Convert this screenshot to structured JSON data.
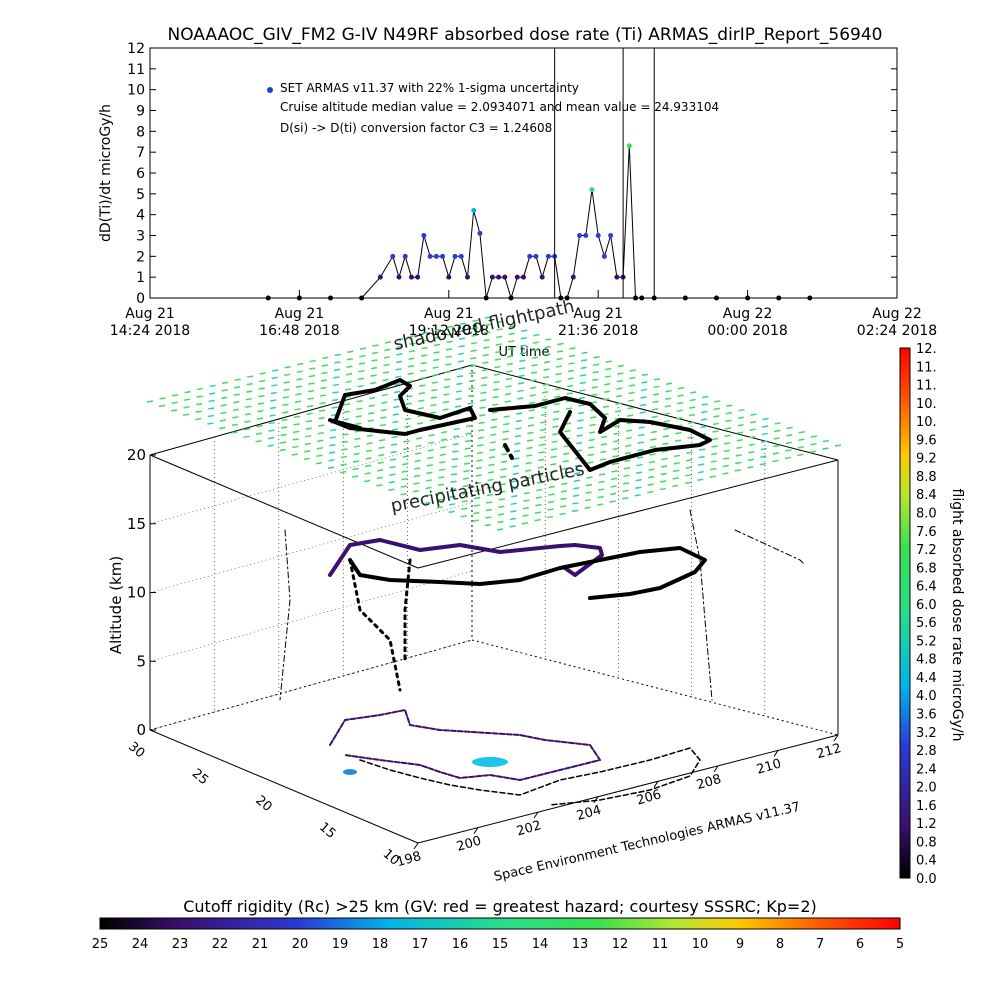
{
  "title": "NOAAAOC_GIV_FM2 G-IV    N49RF   absorbed dose rate (Ti) ARMAS_dirIP_Report_56940",
  "top_chart": {
    "ylabel": "dD(Ti)/dt microGy/h",
    "xlabel": "UT time",
    "legend": [
      "SET ARMAS v11.37 with 22% 1-sigma uncertainty",
      "Cruise altitude median value = 2.0934071 and  mean value = 24.933104",
      "D(si) -> D(ti) conversion factor C3 = 1.24608"
    ],
    "yticks": [
      "0",
      "1",
      "2",
      "3",
      "4",
      "5",
      "6",
      "7",
      "8",
      "9",
      "10",
      "11",
      "12"
    ],
    "xticks": [
      {
        "day": "Aug 21",
        "time": "14:24 2018"
      },
      {
        "day": "Aug 21",
        "time": "16:48 2018"
      },
      {
        "day": "Aug 21",
        "time": "19:12 2018"
      },
      {
        "day": "Aug 21",
        "time": "21:36 2018"
      },
      {
        "day": "Aug 22",
        "time": "00:00 2018"
      },
      {
        "day": "Aug 22",
        "time": "02:24 2018"
      }
    ]
  },
  "chart_data": {
    "type": "line",
    "title": "NOAAAOC_GIV_FM2 G-IV    N49RF   absorbed dose rate (Ti) ARMAS_dirIP_Report_56940",
    "xlabel": "UT time",
    "ylabel": "dD(Ti)/dt microGy/h",
    "x_unit": "hours UT from Aug 21 00:00 2018",
    "xlim": [
      14.4,
      26.4
    ],
    "ylim": [
      0,
      12
    ],
    "series": [
      {
        "name": "SET ARMAS v11.37 with 22% 1-sigma uncertainty",
        "x": [
          16.3,
          16.8,
          17.3,
          17.8,
          18.1,
          18.3,
          18.4,
          18.5,
          18.6,
          18.7,
          18.8,
          18.9,
          19.0,
          19.1,
          19.2,
          19.3,
          19.4,
          19.5,
          19.6,
          19.7,
          19.8,
          19.9,
          20.0,
          20.1,
          20.2,
          20.3,
          20.4,
          20.5,
          20.6,
          20.7,
          20.8,
          20.9,
          21.0,
          21.1,
          21.2,
          21.3,
          21.4,
          21.5,
          21.6,
          21.7,
          21.8,
          21.9,
          22.0,
          22.1,
          22.2,
          22.3,
          22.5,
          23.0,
          23.5,
          24.0,
          24.5,
          25.0
        ],
        "y": [
          0,
          0,
          0,
          0,
          1,
          2,
          1,
          2,
          1,
          1,
          3,
          2,
          2,
          2,
          1,
          2,
          2,
          1,
          4.2,
          3.1,
          0,
          1,
          1,
          1,
          0,
          1,
          1,
          2,
          2,
          1,
          2,
          2,
          0,
          0,
          1,
          3,
          3,
          5.2,
          3,
          2,
          3,
          1,
          1,
          7.3,
          0,
          0,
          0,
          0,
          0,
          0,
          0,
          0
        ]
      }
    ],
    "y_values_note": "",
    "panel2": {
      "type": "scatter",
      "ylabel": "Altitude (km)",
      "altitude_ticks": [
        "0",
        "5",
        "10",
        "15",
        "20"
      ],
      "longitude_ticks": [
        "198",
        "200",
        "202",
        "204",
        "206",
        "208",
        "210",
        "212"
      ],
      "latitude_ticks": [
        "10",
        "15",
        "20",
        "25",
        "30"
      ],
      "annotations": [
        "shadowed flightpath",
        "precipitating particles"
      ],
      "credit": "Space Environment Technologies ARMAS v11.37"
    },
    "colorbar_right": {
      "label": "flight absorbed dose rate microGy/h",
      "ticks": [
        "0.0",
        "0.4",
        "0.8",
        "1.2",
        "1.6",
        "2.0",
        "2.4",
        "2.8",
        "3.2",
        "3.6",
        "4.0",
        "4.4",
        "4.8",
        "5.2",
        "5.6",
        "6.0",
        "6.4",
        "6.8",
        "7.2",
        "7.6",
        "8.0",
        "8.4",
        "8.8",
        "9.2",
        "9.6",
        "10.",
        "10.",
        "11.",
        "11.",
        "12."
      ]
    },
    "colorbar_bottom": {
      "label": "Cutoff rigidity (Rc) >25 km (GV: red = greatest hazard; courtesy SSSRC; Kp=2)",
      "ticks": [
        "25",
        "24",
        "23",
        "22",
        "21",
        "20",
        "19",
        "18",
        "17",
        "16",
        "15",
        "14",
        "13",
        "12",
        "11",
        "10",
        "9",
        "8",
        "7",
        "6",
        "5"
      ]
    }
  },
  "colors": {
    "cb_stops": [
      "#000000",
      "#3a0f6e",
      "#2a3bd6",
      "#00b4e6",
      "#2adc8c",
      "#38e050",
      "#b4e632",
      "#ffc800",
      "#ff5a00",
      "#ff0000"
    ]
  }
}
